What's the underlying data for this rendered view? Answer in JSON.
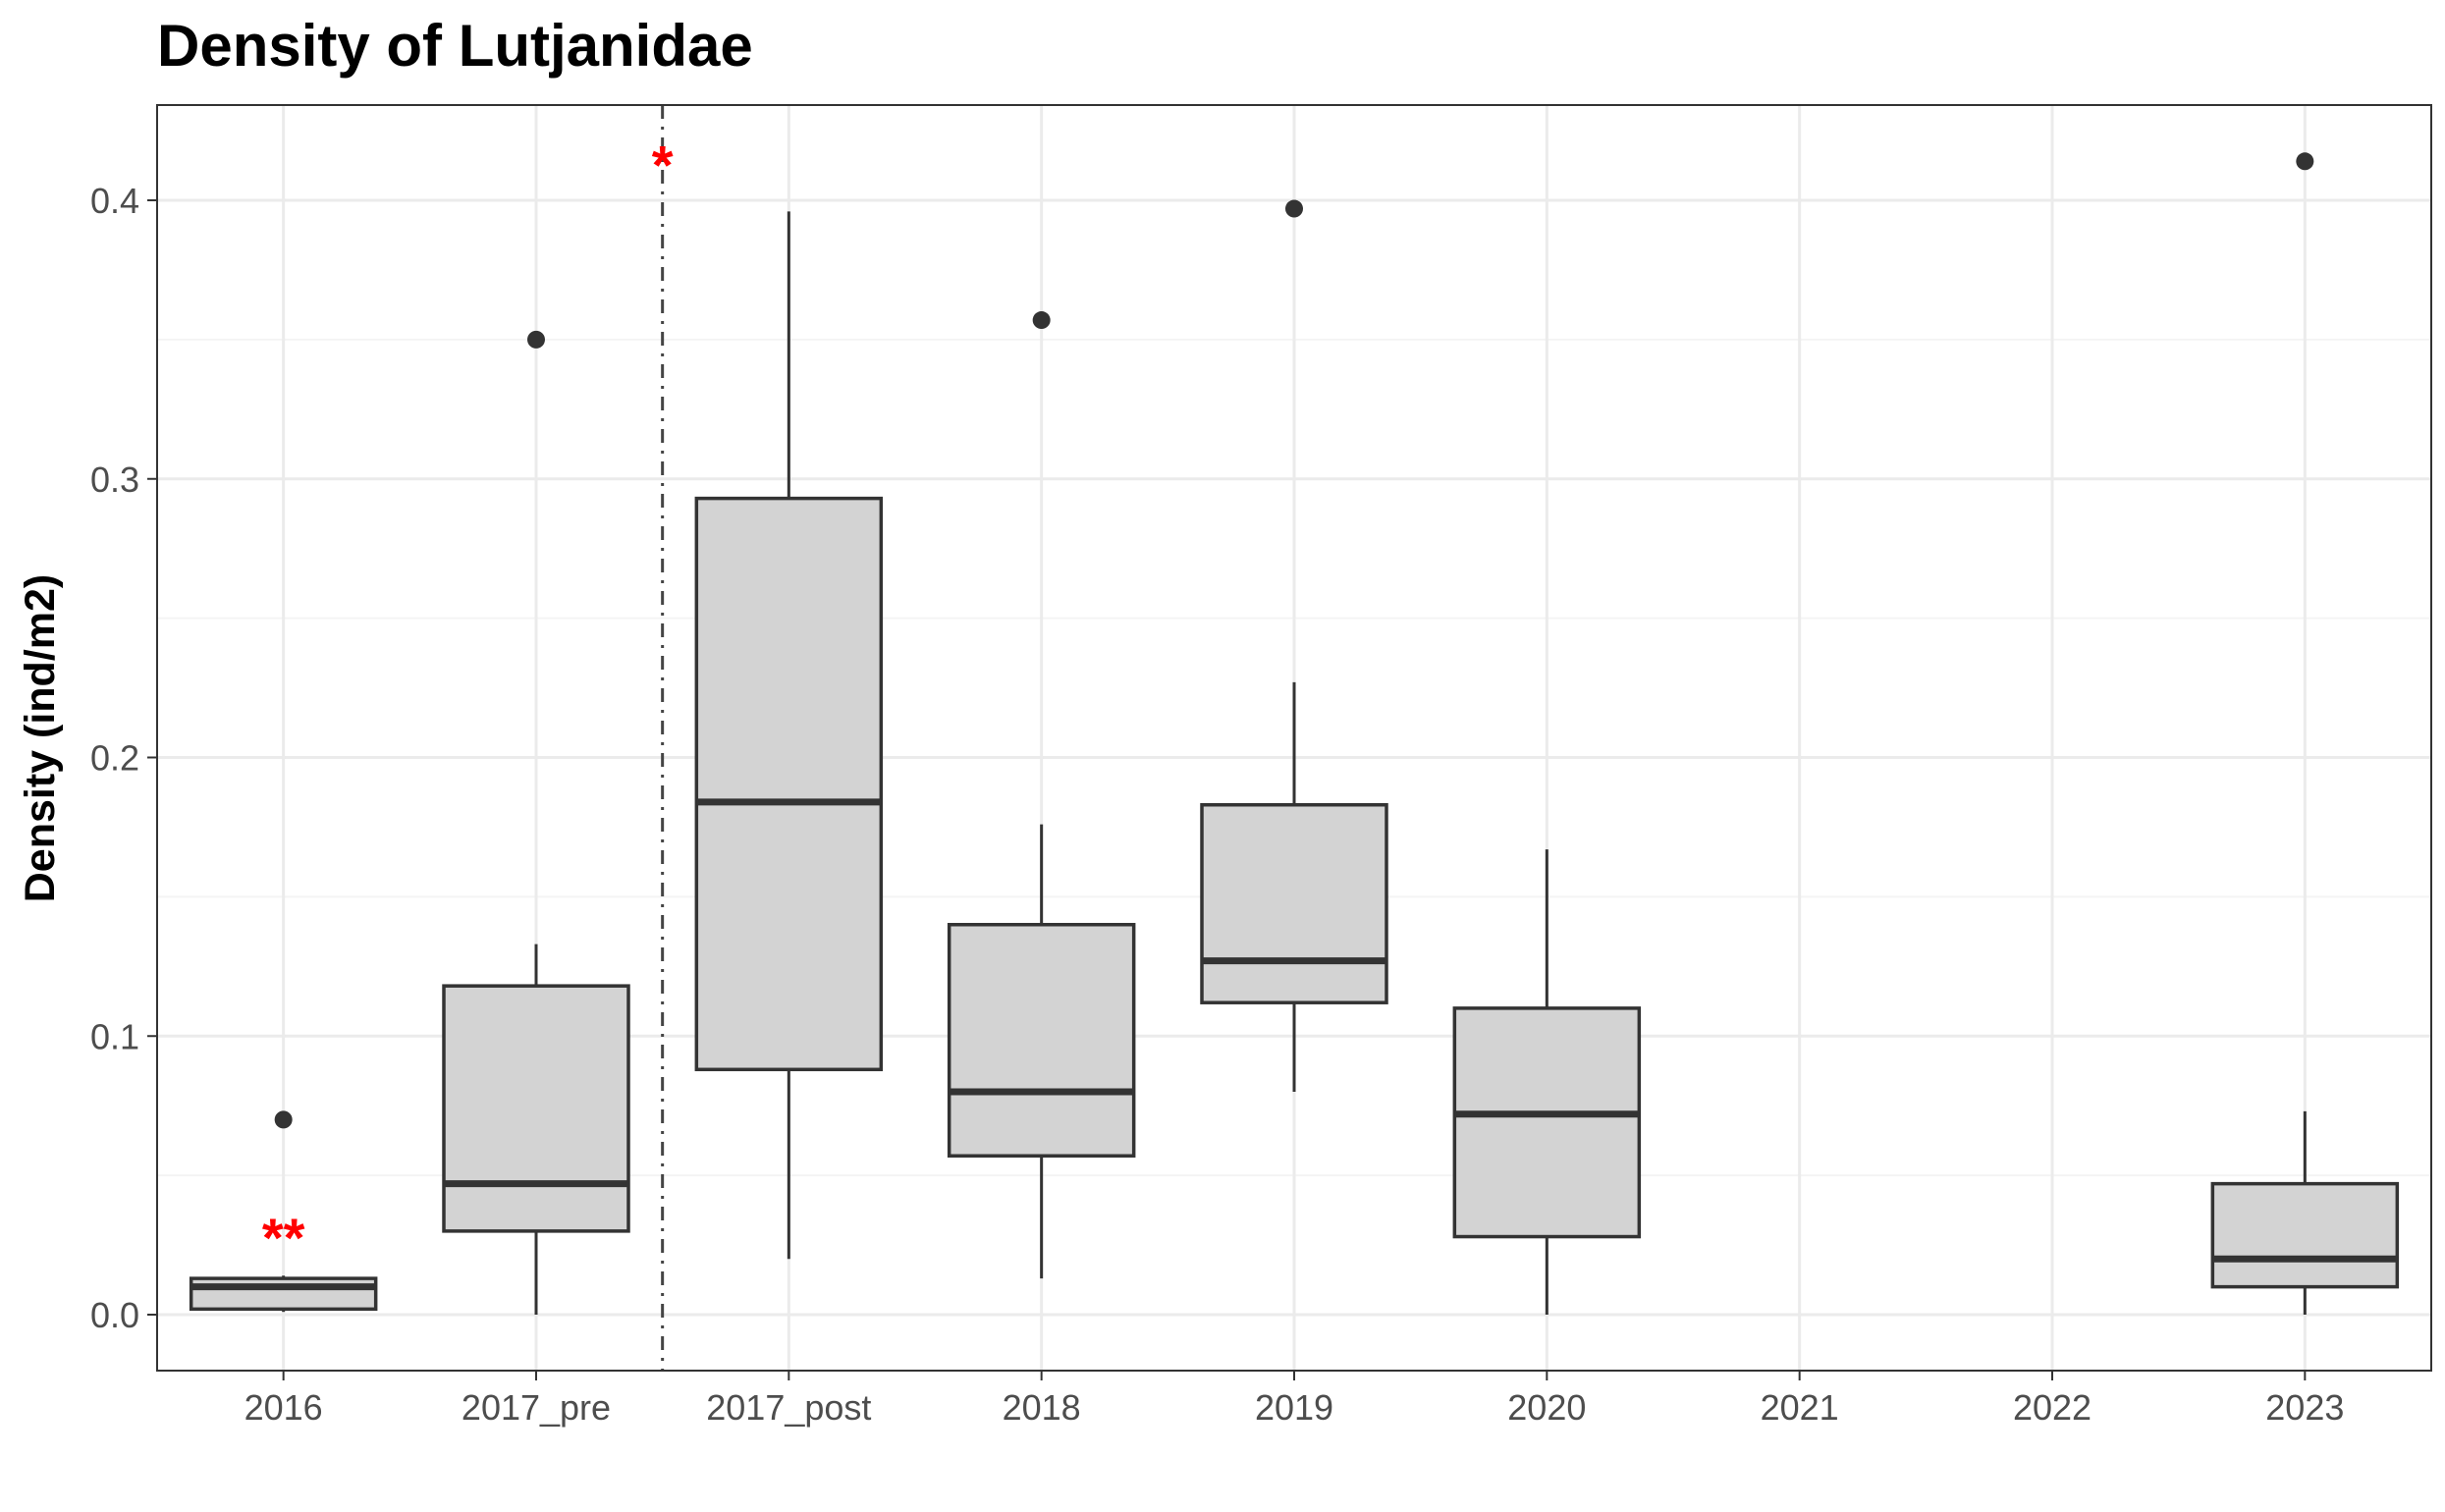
{
  "chart_data": {
    "type": "box",
    "title": "Density of Lutjanidae",
    "xlabel": "",
    "ylabel": "Density (ind/m2)",
    "categories": [
      "2016",
      "2017_pre",
      "2017_post",
      "2018",
      "2019",
      "2020",
      "2021",
      "2022",
      "2023"
    ],
    "ylim": [
      -0.02,
      0.435
    ],
    "yticks": [
      0.0,
      0.1,
      0.2,
      0.3,
      0.4
    ],
    "ytick_labels": [
      "0.0",
      "0.1",
      "0.2",
      "0.3",
      "0.4"
    ],
    "grid": true,
    "box_fill": "#d3d3d3",
    "line_color": "#333333",
    "annotation_color": "#ff0000",
    "boxes": [
      {
        "category": "2016",
        "whisker_low": 0.001,
        "q1": 0.002,
        "median": 0.01,
        "q3": 0.013,
        "whisker_high": 0.014,
        "outliers": [
          0.07
        ]
      },
      {
        "category": "2017_pre",
        "whisker_low": 0.0,
        "q1": 0.03,
        "median": 0.047,
        "q3": 0.118,
        "whisker_high": 0.133,
        "outliers": [
          0.35
        ]
      },
      {
        "category": "2017_post",
        "whisker_low": 0.02,
        "q1": 0.088,
        "median": 0.184,
        "q3": 0.293,
        "whisker_high": 0.396,
        "outliers": []
      },
      {
        "category": "2018",
        "whisker_low": 0.013,
        "q1": 0.057,
        "median": 0.08,
        "q3": 0.14,
        "whisker_high": 0.176,
        "outliers": [
          0.357
        ]
      },
      {
        "category": "2019",
        "whisker_low": 0.08,
        "q1": 0.112,
        "median": 0.127,
        "q3": 0.183,
        "whisker_high": 0.227,
        "outliers": [
          0.397
        ]
      },
      {
        "category": "2020",
        "whisker_low": 0.0,
        "q1": 0.028,
        "median": 0.072,
        "q3": 0.11,
        "whisker_high": 0.167,
        "outliers": []
      },
      {
        "category": "2023",
        "whisker_low": 0.0,
        "q1": 0.01,
        "median": 0.02,
        "q3": 0.047,
        "whisker_high": 0.073,
        "outliers": [
          0.414
        ]
      }
    ],
    "vline": {
      "between": [
        "2017_pre",
        "2017_post"
      ],
      "style": "dashdot"
    },
    "annotations": [
      {
        "text": "**",
        "category": "2016",
        "y": 0.03
      },
      {
        "text": "*",
        "at_vline": true,
        "y": 0.415
      }
    ]
  }
}
